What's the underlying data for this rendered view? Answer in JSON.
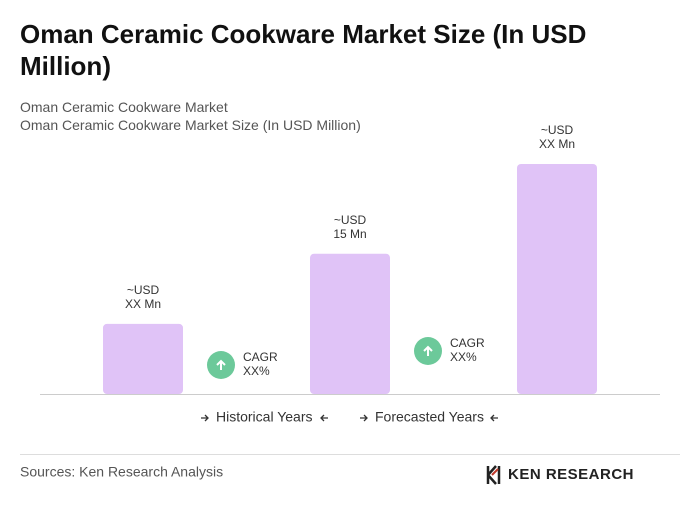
{
  "chart_data": {
    "type": "bar",
    "title": "Oman Ceramic Cookware Market Size (In USD Million)",
    "subtitles": [
      "Oman Ceramic Cookware Market",
      "Oman Ceramic Cookware Market Size (In USD Million)"
    ],
    "categories": [
      null,
      null,
      null
    ],
    "values": [
      7.5,
      15,
      24.6
    ],
    "value_labels": [
      [
        "~USD",
        "XX Mn"
      ],
      [
        "~USD",
        "15 Mn"
      ],
      [
        "~USD",
        "XX Mn"
      ]
    ],
    "color": "#e0c3f7",
    "cagr": [
      [
        "CAGR",
        "XX%"
      ],
      [
        "CAGR",
        "XX%"
      ]
    ],
    "cagr_color": "#6cc99a",
    "legend": [
      "Historical Years",
      "Forecasted Years"
    ],
    "source": "Sources: Ken Research Analysis",
    "logo": "KEN RESEARCH"
  }
}
